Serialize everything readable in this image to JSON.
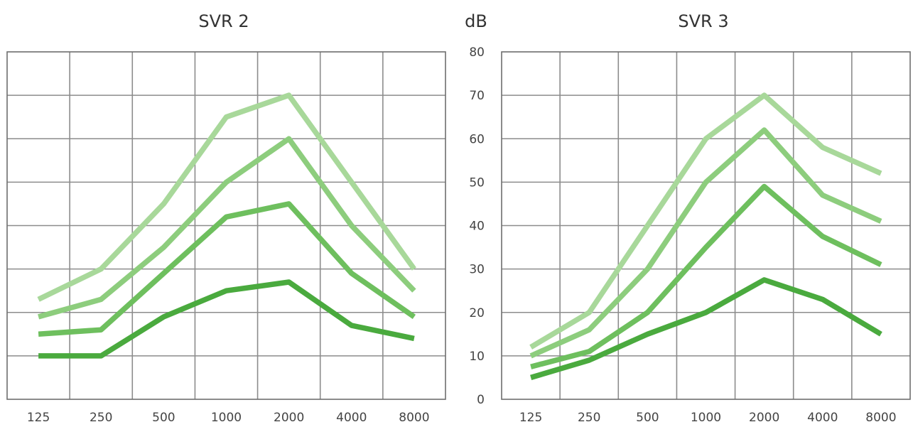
{
  "ylabel": "dB",
  "colors": {
    "grid": "#8c8c8c",
    "series": [
      "#a8d89a",
      "#8dcd7d",
      "#6ebf5e",
      "#4aaa3e"
    ]
  },
  "chart_data": [
    {
      "type": "line",
      "title": "SVR 2",
      "xlabel": "",
      "ylabel": "",
      "categories": [
        "125",
        "250",
        "500",
        "1000",
        "2000",
        "4000",
        "8000"
      ],
      "ylim": [
        0,
        80
      ],
      "y_ticks_labeled": false,
      "grid": true,
      "legend": "none",
      "series": [
        {
          "values": [
            23,
            30,
            45,
            65,
            70,
            50,
            30
          ]
        },
        {
          "values": [
            19,
            23,
            35,
            50,
            60,
            40,
            25
          ]
        },
        {
          "values": [
            15,
            16,
            29,
            42,
            45,
            29,
            19
          ]
        },
        {
          "values": [
            10,
            10,
            19,
            25,
            27,
            17,
            14
          ]
        }
      ]
    },
    {
      "type": "line",
      "title": "SVR 3",
      "xlabel": "",
      "ylabel": "dB",
      "categories": [
        "125",
        "250",
        "500",
        "1000",
        "2000",
        "4000",
        "8000"
      ],
      "ylim": [
        0,
        80
      ],
      "y_ticks": [
        "0",
        "10",
        "20",
        "30",
        "40",
        "50",
        "60",
        "70",
        "80"
      ],
      "grid": true,
      "legend": "none",
      "series": [
        {
          "values": [
            12,
            20,
            40,
            60,
            70,
            58,
            52
          ]
        },
        {
          "values": [
            10,
            16,
            30,
            50,
            62,
            47,
            41
          ]
        },
        {
          "values": [
            7.5,
            11,
            20,
            35,
            49,
            37.5,
            31
          ]
        },
        {
          "values": [
            5,
            9,
            15,
            20,
            27.5,
            23,
            15
          ]
        }
      ]
    }
  ]
}
